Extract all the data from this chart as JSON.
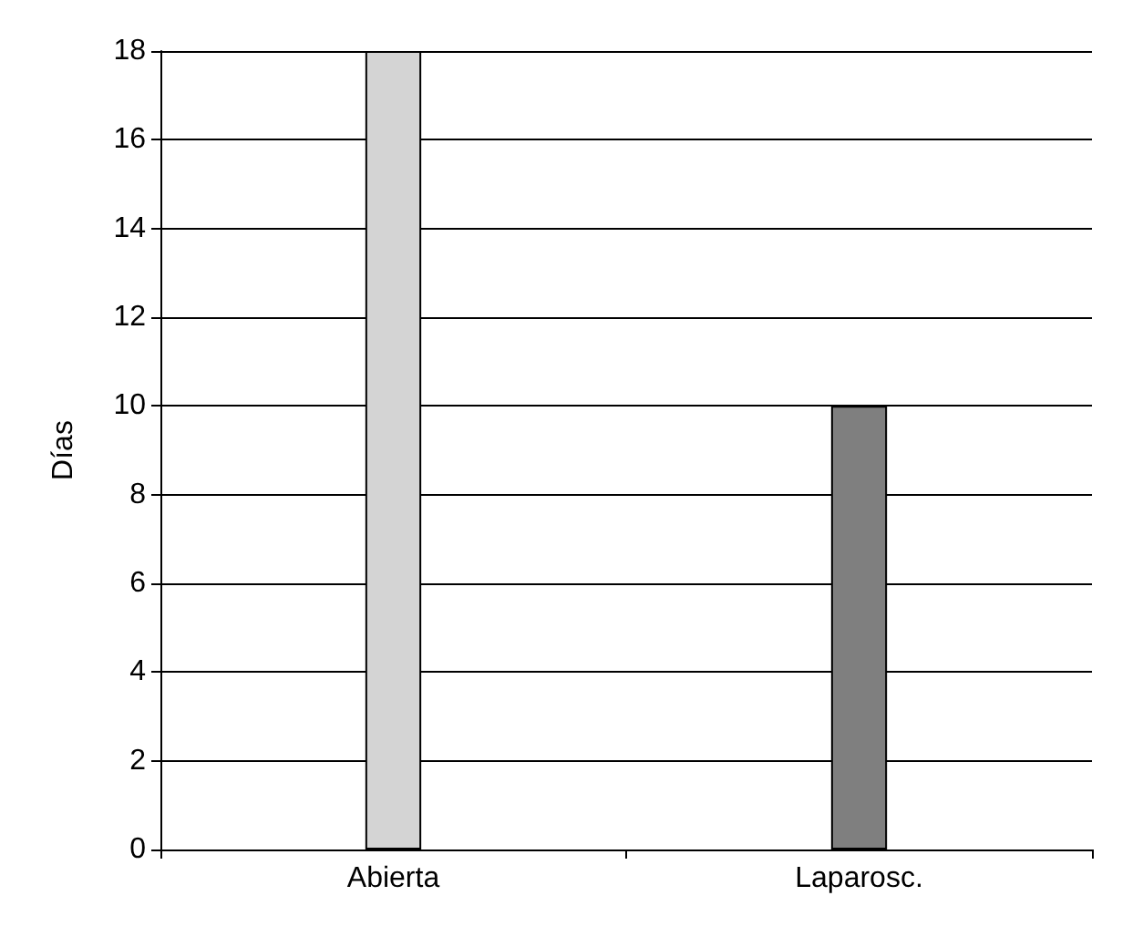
{
  "chart_data": {
    "type": "bar",
    "ylabel": "Días",
    "categories": [
      "Abierta",
      "Laparosc."
    ],
    "values": [
      18,
      10
    ],
    "colors": [
      "#d4d4d4",
      "#7f7f7f"
    ],
    "ylim": [
      0,
      18
    ],
    "yticks": [
      0,
      2,
      4,
      6,
      8,
      10,
      12,
      14,
      16,
      18
    ],
    "grid": "y"
  }
}
